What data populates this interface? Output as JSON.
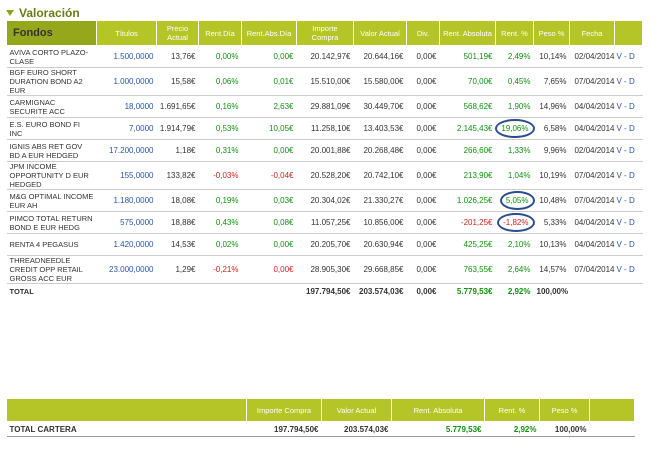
{
  "section_title": "Valoración",
  "headers": {
    "fondos": "Fondos",
    "titulos": "Títulos",
    "precio": "Precio Actual",
    "rent_dia": "Rent.Día",
    "rent_abs_dia": "Rent.Abs.Día",
    "importe": "Importe Compra",
    "valor": "Valor Actual",
    "div": "Div.",
    "rent_abs": "Rent. Absoluta",
    "rent_pct": "Rent. %",
    "peso": "Peso %",
    "fecha": "Fecha"
  },
  "rows": [
    {
      "name": "AVIVA CORTO PLAZO-CLASE",
      "titulos": "1.500,0000",
      "precio": "13,76€",
      "rent_dia": "0,00%",
      "rent_abs_dia": "0,00€",
      "importe": "20.142,97€",
      "valor": "20.644,16€",
      "div": "0,00€",
      "rent_abs": "501,19€",
      "rent_pct": "2,49%",
      "peso": "10,14%",
      "fecha": "02/04/2014",
      "action": "V - D",
      "rd_color": "green",
      "ra_color": "green",
      "rp_color": "green",
      "circled": false
    },
    {
      "name": "BGF EURO SHORT DURATION BOND A2 EUR",
      "titulos": "1.000,0000",
      "precio": "15,58€",
      "rent_dia": "0,06%",
      "rent_abs_dia": "0,01€",
      "importe": "15.510,00€",
      "valor": "15.580,00€",
      "div": "0,00€",
      "rent_abs": "70,00€",
      "rent_pct": "0,45%",
      "peso": "7,65%",
      "fecha": "07/04/2014",
      "action": "V - D",
      "rd_color": "green",
      "ra_color": "green",
      "rp_color": "green",
      "circled": false
    },
    {
      "name": "CARMIGNAC SECURITE ACC",
      "titulos": "18,0000",
      "precio": "1.691,65€",
      "rent_dia": "0,16%",
      "rent_abs_dia": "2,63€",
      "importe": "29.881,09€",
      "valor": "30.449,70€",
      "div": "0,00€",
      "rent_abs": "568,62€",
      "rent_pct": "1,90%",
      "peso": "14,96%",
      "fecha": "04/04/2014",
      "action": "V - D",
      "rd_color": "green",
      "ra_color": "green",
      "rp_color": "green",
      "circled": false
    },
    {
      "name": "E.S. EURO BOND FI INC",
      "titulos": "7,0000",
      "precio": "1.914,79€",
      "rent_dia": "0,53%",
      "rent_abs_dia": "10,05€",
      "importe": "11.258,10€",
      "valor": "13.403,53€",
      "div": "0,00€",
      "rent_abs": "2.145,43€",
      "rent_pct": "19,06%",
      "peso": "6,58%",
      "fecha": "04/04/2014",
      "action": "V - D",
      "rd_color": "green",
      "ra_color": "green",
      "rp_color": "green",
      "circled": true
    },
    {
      "name": "IGNIS ABS RET GOV BD A EUR HEDGED",
      "titulos": "17.200,0000",
      "precio": "1,18€",
      "rent_dia": "0,31%",
      "rent_abs_dia": "0,00€",
      "importe": "20.001,88€",
      "valor": "20.268,48€",
      "div": "0,00€",
      "rent_abs": "266,60€",
      "rent_pct": "1,33%",
      "peso": "9,96%",
      "fecha": "02/04/2014",
      "action": "V - D",
      "rd_color": "green",
      "ra_color": "green",
      "rp_color": "green",
      "circled": false
    },
    {
      "name": "JPM INCOME OPPORTUNITY D EUR HEDGED",
      "titulos": "155,0000",
      "precio": "133,82€",
      "rent_dia": "-0,03%",
      "rent_abs_dia": "-0,04€",
      "importe": "20.528,20€",
      "valor": "20.742,10€",
      "div": "0,00€",
      "rent_abs": "213,90€",
      "rent_pct": "1,04%",
      "peso": "10,19%",
      "fecha": "07/04/2014",
      "action": "V - D",
      "rd_color": "red",
      "ra_color": "green",
      "rp_color": "green",
      "circled": false
    },
    {
      "name": "M&G OPTIMAL INCOME EUR AH",
      "titulos": "1.180,0000",
      "precio": "18,08€",
      "rent_dia": "0,19%",
      "rent_abs_dia": "0,03€",
      "importe": "20.304,02€",
      "valor": "21.330,27€",
      "div": "0,00€",
      "rent_abs": "1.026,25€",
      "rent_pct": "5,05%",
      "peso": "10,48%",
      "fecha": "07/04/2014",
      "action": "V - D",
      "rd_color": "green",
      "ra_color": "green",
      "rp_color": "green",
      "circled": true
    },
    {
      "name": "PIMCO TOTAL RETURN BOND E EUR HEDG",
      "titulos": "575,0000",
      "precio": "18,88€",
      "rent_dia": "0,43%",
      "rent_abs_dia": "0,08€",
      "importe": "11.057,25€",
      "valor": "10.856,00€",
      "div": "0,00€",
      "rent_abs": "-201,25€",
      "rent_pct": "-1,82%",
      "peso": "5,33%",
      "fecha": "04/04/2014",
      "action": "V - D",
      "rd_color": "green",
      "ra_color": "red",
      "rp_color": "red",
      "circled": true
    },
    {
      "name": "RENTA 4 PEGASUS",
      "titulos": "1.420,0000",
      "precio": "14,53€",
      "rent_dia": "0,02%",
      "rent_abs_dia": "0,00€",
      "importe": "20.205,70€",
      "valor": "20.630,94€",
      "div": "0,00€",
      "rent_abs": "425,25€",
      "rent_pct": "2,10%",
      "peso": "10,13%",
      "fecha": "04/04/2014",
      "action": "V - D",
      "rd_color": "green",
      "ra_color": "green",
      "rp_color": "green",
      "circled": false
    },
    {
      "name": "THREADNEEDLE CREDIT OPP RETAIL GROSS ACC EUR",
      "titulos": "23.000,0000",
      "precio": "1,29€",
      "rent_dia": "-0,21%",
      "rent_abs_dia": "0,00€",
      "importe": "28.905,30€",
      "valor": "29.668,85€",
      "div": "0,00€",
      "rent_abs": "763,55€",
      "rent_pct": "2,64%",
      "peso": "14,57%",
      "fecha": "07/04/2014",
      "action": "V - D",
      "rd_color": "red",
      "ra_color": "green",
      "rp_color": "green",
      "circled": false
    }
  ],
  "total_row": {
    "label": "TOTAL",
    "importe": "197.794,50€",
    "valor": "203.574,03€",
    "div": "0,00€",
    "rent_abs": "5.779,53€",
    "rent_pct": "2,92%",
    "peso": "100,00%"
  },
  "summary": {
    "headers": {
      "importe": "Importe Compra",
      "valor": "Valor Actual",
      "rent_abs": "Rent. Absoluta",
      "rent_pct": "Rent. %",
      "peso": "Peso %"
    },
    "label": "TOTAL CARTERA",
    "importe": "197.794,50€",
    "valor": "203.574,03€",
    "rent_abs": "5.779,53€",
    "rent_pct": "2,92%",
    "peso": "100,00%"
  },
  "colors": {
    "header_bg": "#b5c427",
    "fondos_bg": "#95a81b",
    "link": "#2a55a8",
    "positive": "#109010",
    "negative": "#d02020",
    "circle": "#2b4f8e"
  }
}
